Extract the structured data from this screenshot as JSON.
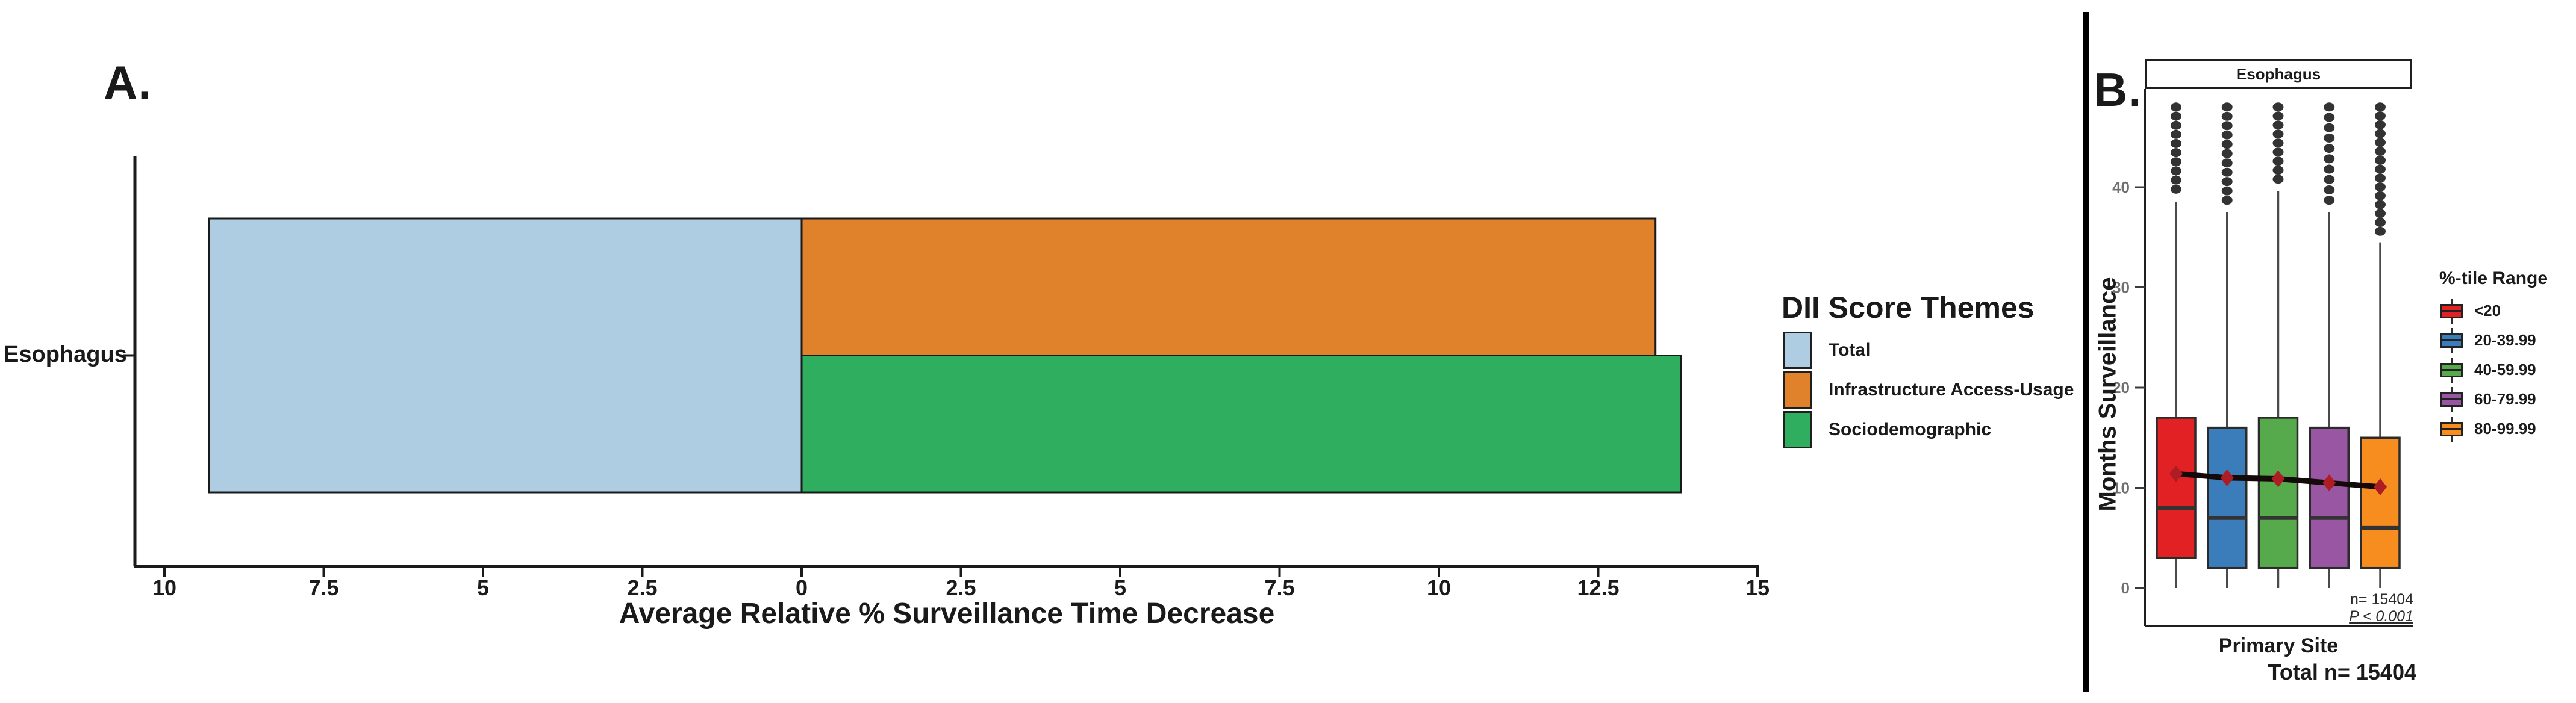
{
  "panel_a": {
    "label": "A.",
    "category": "Esophagus",
    "x_axis_title": "Average Relative % Surveillance Time Decrease",
    "legend": {
      "title": "DII Score Themes",
      "items": [
        {
          "label": "Total",
          "color": "#aecde3"
        },
        {
          "label": "Infrastructure Access-Usage",
          "color": "#e0812c"
        },
        {
          "label": "Sociodemographic",
          "color": "#2fae60"
        }
      ]
    }
  },
  "panel_b": {
    "label": "B.",
    "strip_title": "Esophagus",
    "y_axis_title": "Months Surveillance",
    "x_axis_title": "Primary Site",
    "total_label": "Total n= 15404",
    "annotations": {
      "n": "n= 15404",
      "p": "P < 0.001"
    },
    "legend": {
      "title": "%-tile Range",
      "items": [
        {
          "label": "<20",
          "color": "#e22125"
        },
        {
          "label": "20-39.99",
          "color": "#3b7dba"
        },
        {
          "label": "40-59.99",
          "color": "#56aa4b"
        },
        {
          "label": "60-79.99",
          "color": "#9856a3"
        },
        {
          "label": "80-99.99",
          "color": "#f68d1e"
        }
      ]
    }
  },
  "chart_data": [
    {
      "type": "bar",
      "orientation": "horizontal-diverging",
      "title": "",
      "category": "Esophagus",
      "xlabel": "Average Relative % Surveillance Time Decrease",
      "xlim": [
        -10.5,
        15
      ],
      "x_tick_abs_labels": true,
      "x_ticks": [
        {
          "value": -10,
          "label": "10"
        },
        {
          "value": -7.5,
          "label": "7.5"
        },
        {
          "value": -5,
          "label": "5"
        },
        {
          "value": -2.5,
          "label": "2.5"
        },
        {
          "value": 0,
          "label": "0"
        },
        {
          "value": 2.5,
          "label": "2.5"
        },
        {
          "value": 5,
          "label": "5"
        },
        {
          "value": 7.5,
          "label": "7.5"
        },
        {
          "value": 10,
          "label": "10"
        },
        {
          "value": 12.5,
          "label": "12.5"
        },
        {
          "value": 15,
          "label": "15"
        }
      ],
      "series": [
        {
          "name": "Total",
          "value": 9.3,
          "direction": "left",
          "band": "full",
          "color": "#aecde3"
        },
        {
          "name": "Infrastructure Access-Usage",
          "value": 13.4,
          "direction": "right",
          "band": "top-half",
          "color": "#e0812c"
        },
        {
          "name": "Sociodemographic",
          "value": 13.8,
          "direction": "right",
          "band": "bottom-half",
          "color": "#2fae60"
        }
      ]
    },
    {
      "type": "boxplot",
      "strip_title": "Esophagus",
      "ylabel": "Months Surveillance",
      "xlabel": "Primary Site",
      "ylim": [
        0,
        48
      ],
      "y_ticks": [
        0,
        10,
        20,
        30,
        40
      ],
      "legend_title": "%-tile Range",
      "groups": [
        {
          "label": "<20",
          "color": "#e22125",
          "q1": 3,
          "median": 8,
          "q3": 17,
          "whisker_low": 0,
          "whisker_high": 38.5,
          "mean": 11.4,
          "outliers": {
            "count": 10,
            "min": 39.8,
            "max": 48
          }
        },
        {
          "label": "20-39.99",
          "color": "#3b7dba",
          "q1": 2,
          "median": 7,
          "q3": 16,
          "whisker_low": 0,
          "whisker_high": 37.5,
          "mean": 11.0,
          "outliers": {
            "count": 11,
            "min": 38.7,
            "max": 48
          }
        },
        {
          "label": "40-59.99",
          "color": "#56aa4b",
          "q1": 2,
          "median": 7,
          "q3": 17,
          "whisker_low": 0,
          "whisker_high": 39.6,
          "mean": 10.9,
          "outliers": {
            "count": 9,
            "min": 40.8,
            "max": 48
          }
        },
        {
          "label": "60-79.99",
          "color": "#9856a3",
          "q1": 2,
          "median": 7,
          "q3": 16,
          "whisker_low": 0,
          "whisker_high": 37.5,
          "mean": 10.5,
          "outliers": {
            "count": 10,
            "min": 38.7,
            "max": 48
          }
        },
        {
          "label": "80-99.99",
          "color": "#f68d1e",
          "q1": 2,
          "median": 6,
          "q3": 15,
          "whisker_low": 0,
          "whisker_high": 34.5,
          "mean": 10.1,
          "outliers": {
            "count": 15,
            "min": 35.6,
            "max": 48
          }
        }
      ],
      "mean_trend": {
        "values": [
          11.4,
          11.0,
          10.9,
          10.5,
          10.1
        ],
        "line_color": "#150a0a",
        "marker_color": "#ae1c24"
      },
      "annotations": {
        "n": "n= 15404",
        "p": "P < 0.001"
      },
      "total_label": "Total n= 15404"
    }
  ]
}
